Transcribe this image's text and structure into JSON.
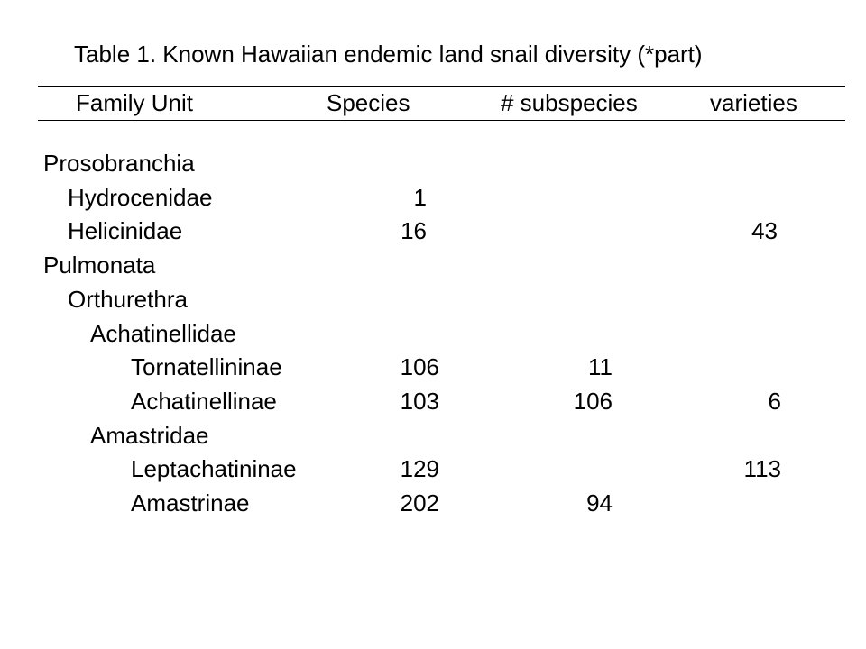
{
  "title": "Table 1. Known Hawaiian endemic land snail diversity (*part)",
  "columns": {
    "family": "Family Unit",
    "species": "Species",
    "subspecies": "# subspecies",
    "varieties": "varieties"
  },
  "rows": [
    {
      "name": "Prosobranchia",
      "level": 0,
      "species": "",
      "subspecies": "",
      "varieties": ""
    },
    {
      "name": "Hydrocenidae",
      "level": 1,
      "species": "1",
      "subspecies": "",
      "varieties": ""
    },
    {
      "name": "Helicinidae",
      "level": 1,
      "species": "16",
      "subspecies": "",
      "varieties": "43"
    },
    {
      "name": "Pulmonata",
      "level": 0,
      "species": "",
      "subspecies": "",
      "varieties": ""
    },
    {
      "name": "Orthurethra",
      "level": 1,
      "species": "",
      "subspecies": "",
      "varieties": ""
    },
    {
      "name": "Achatinellidae",
      "level": 2,
      "species": "",
      "subspecies": "",
      "varieties": ""
    },
    {
      "name": "Tornatellininae",
      "level": 3,
      "species": "106",
      "subspecies": "11",
      "varieties": ""
    },
    {
      "name": "Achatinellinae",
      "level": 3,
      "species": "103",
      "subspecies": "106",
      "varieties": "6"
    },
    {
      "name": "Amastridae",
      "level": 2,
      "species": "",
      "subspecies": "",
      "varieties": ""
    },
    {
      "name": "Leptachatininae",
      "level": 3,
      "species": "129",
      "subspecies": "",
      "varieties": "113"
    },
    {
      "name": "Amastrinae",
      "level": 3,
      "species": "202",
      "subspecies": "94",
      "varieties": ""
    }
  ]
}
